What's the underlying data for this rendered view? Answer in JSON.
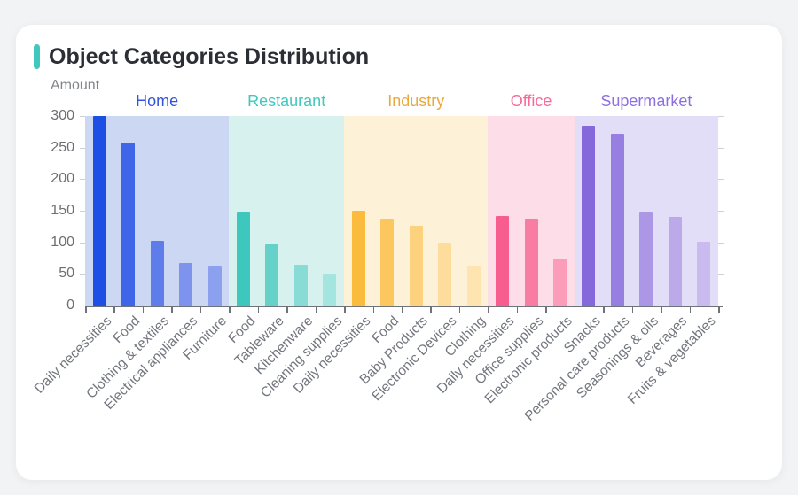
{
  "page": {
    "background_color": "#f2f3f5",
    "card_color": "#ffffff"
  },
  "header": {
    "title": "Object Categories Distribution",
    "accent_color": "#3fc8be"
  },
  "chart_data": {
    "type": "bar",
    "title": "Object Categories Distribution",
    "ylabel": "Amount",
    "xlabel": "",
    "ylim": [
      0,
      300
    ],
    "yticks": [
      0,
      50,
      100,
      150,
      200,
      250,
      300
    ],
    "grid": false,
    "legend_position": "group-labels-above-bands",
    "x_label_rotation_deg": 45,
    "axis_color": "#6e7279",
    "tick_color": "#cfd1d6",
    "text_color": "#6b6e74",
    "groups": [
      {
        "name": "Home",
        "label_color": "#3354e0",
        "band_color": "#ccd7f4",
        "bar_colors": [
          "#1d4fe4",
          "#3f66e8",
          "#5f7ceb",
          "#7e93ee",
          "#8ba0ef"
        ],
        "categories": [
          "Daily necessities",
          "Food",
          "Clothing & textiles",
          "Electrical appliances",
          "Furniture"
        ],
        "values": [
          300,
          258,
          102,
          68,
          63
        ]
      },
      {
        "name": "Restaurant",
        "label_color": "#41c8be",
        "band_color": "#d7f1ee",
        "bar_colors": [
          "#3ec7bc",
          "#66d1c9",
          "#89dcd6",
          "#a5e5e0"
        ],
        "categories": [
          "Food",
          "Tableware",
          "Kitchenware",
          "Cleaning supplies"
        ],
        "values": [
          148,
          97,
          65,
          51
        ]
      },
      {
        "name": "Industry",
        "label_color": "#e9a93c",
        "band_color": "#fdf2d8",
        "bar_colors": [
          "#fbbc3d",
          "#fcc75f",
          "#fcd27e",
          "#fddc9c",
          "#fde4b1"
        ],
        "categories": [
          "Daily necessities",
          "Food",
          "Baby Products",
          "Electronic Devices",
          "Clothing"
        ],
        "values": [
          150,
          138,
          126,
          100,
          63
        ]
      },
      {
        "name": "Office",
        "label_color": "#f76a9b",
        "band_color": "#fcdde8",
        "bar_colors": [
          "#f75d8e",
          "#f97ca2",
          "#fb9cb9"
        ],
        "categories": [
          "Daily necessities",
          "Office supplies",
          "Electronic products"
        ],
        "values": [
          142,
          138,
          74
        ]
      },
      {
        "name": "Supermarket",
        "label_color": "#8d6fe0",
        "band_color": "#e3def8",
        "bar_colors": [
          "#8468dc",
          "#977fe1",
          "#ab97e6",
          "#bba9ea",
          "#c9bbef"
        ],
        "categories": [
          "Snacks",
          "Personal care products",
          "Seasonings & oils",
          "Beverages",
          "Fruits & vegetables"
        ],
        "values": [
          285,
          272,
          148,
          140,
          101
        ]
      }
    ]
  }
}
